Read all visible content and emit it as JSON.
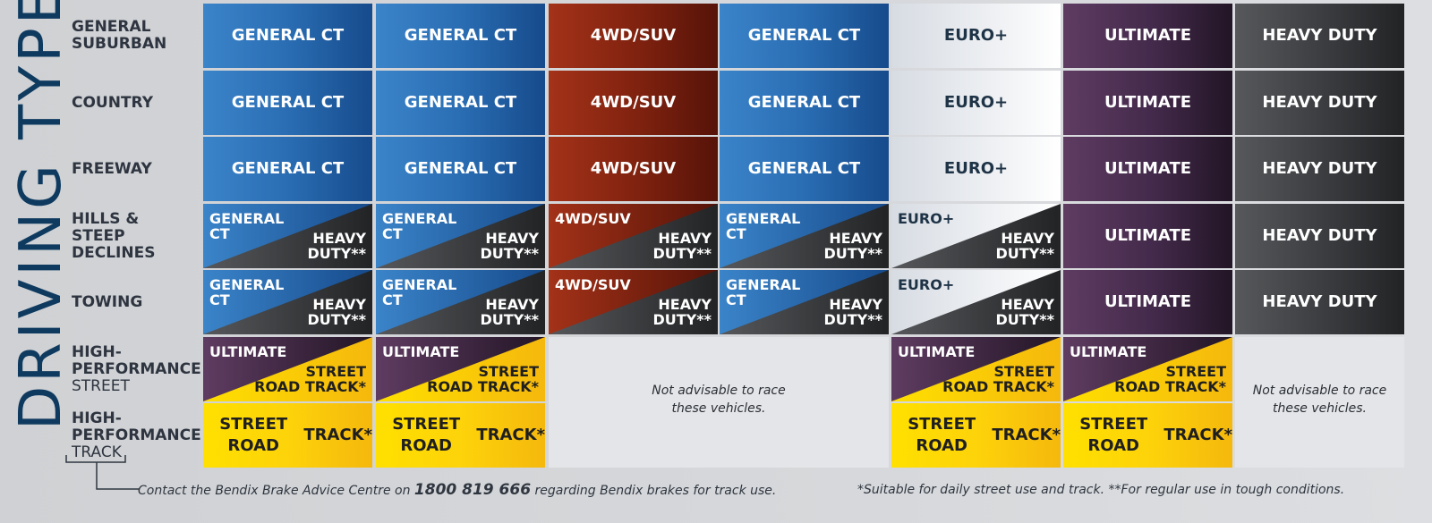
{
  "side_title": "DRIVING TYPE",
  "rows": [
    {
      "label_lines": [
        "GENERAL",
        "SUBURBAN"
      ],
      "thin_line": ""
    },
    {
      "label_lines": [
        "COUNTRY"
      ],
      "thin_line": ""
    },
    {
      "label_lines": [
        "FREEWAY"
      ],
      "thin_line": ""
    },
    {
      "label_lines": [
        "HILLS &",
        "STEEP",
        "DECLINES"
      ],
      "thin_line": ""
    },
    {
      "label_lines": [
        "TOWING"
      ],
      "thin_line": ""
    },
    {
      "label_lines": [
        "HIGH-",
        "PERFORMANCE"
      ],
      "thin_line": "STREET"
    },
    {
      "label_lines": [
        "HIGH-",
        "PERFORMANCE"
      ],
      "thin_line": "TRACK"
    }
  ],
  "palette": {
    "blue": "#2a6db3",
    "red": "#7e210f",
    "euro": "#eef0f3",
    "ultimate": "#42294a",
    "heavy": "#3c3e41",
    "yellow": "#fdd30a",
    "title": "#0f3a5f"
  },
  "grid": [
    [
      {
        "type": "solid",
        "color": "blue",
        "lines": [
          "GENERAL CT"
        ]
      },
      {
        "type": "solid",
        "color": "blue",
        "lines": [
          "GENERAL CT"
        ]
      },
      {
        "type": "solid",
        "color": "red",
        "lines": [
          "4WD/SUV"
        ]
      },
      {
        "type": "solid",
        "color": "blue",
        "lines": [
          "GENERAL CT"
        ]
      },
      {
        "type": "solid",
        "color": "euro",
        "lines": [
          "EURO+"
        ]
      },
      {
        "type": "solid",
        "color": "ultimate",
        "lines": [
          "ULTIMATE"
        ]
      },
      {
        "type": "solid",
        "color": "heavy",
        "lines": [
          "HEAVY DUTY"
        ]
      }
    ],
    [
      {
        "type": "solid",
        "color": "blue",
        "lines": [
          "GENERAL CT"
        ]
      },
      {
        "type": "solid",
        "color": "blue",
        "lines": [
          "GENERAL CT"
        ]
      },
      {
        "type": "solid",
        "color": "red",
        "lines": [
          "4WD/SUV"
        ]
      },
      {
        "type": "solid",
        "color": "blue",
        "lines": [
          "GENERAL CT"
        ]
      },
      {
        "type": "solid",
        "color": "euro",
        "lines": [
          "EURO+"
        ]
      },
      {
        "type": "solid",
        "color": "ultimate",
        "lines": [
          "ULTIMATE"
        ]
      },
      {
        "type": "solid",
        "color": "heavy",
        "lines": [
          "HEAVY DUTY"
        ]
      }
    ],
    [
      {
        "type": "solid",
        "color": "blue",
        "lines": [
          "GENERAL CT"
        ]
      },
      {
        "type": "solid",
        "color": "blue",
        "lines": [
          "GENERAL CT"
        ]
      },
      {
        "type": "solid",
        "color": "red",
        "lines": [
          "4WD/SUV"
        ]
      },
      {
        "type": "solid",
        "color": "blue",
        "lines": [
          "GENERAL CT"
        ]
      },
      {
        "type": "solid",
        "color": "euro",
        "lines": [
          "EURO+"
        ]
      },
      {
        "type": "solid",
        "color": "ultimate",
        "lines": [
          "ULTIMATE"
        ]
      },
      {
        "type": "solid",
        "color": "heavy",
        "lines": [
          "HEAVY DUTY"
        ]
      }
    ],
    [
      {
        "type": "split",
        "top": "blue",
        "bottom": "heavy",
        "top_lines": [
          "GENERAL",
          "CT"
        ],
        "bottom_lines": [
          "HEAVY",
          "DUTY**"
        ]
      },
      {
        "type": "split",
        "top": "blue",
        "bottom": "heavy",
        "top_lines": [
          "GENERAL",
          "CT"
        ],
        "bottom_lines": [
          "HEAVY",
          "DUTY**"
        ]
      },
      {
        "type": "split",
        "top": "red",
        "bottom": "heavy",
        "top_lines": [
          "4WD/SUV"
        ],
        "bottom_lines": [
          "HEAVY",
          "DUTY**"
        ]
      },
      {
        "type": "split",
        "top": "blue",
        "bottom": "heavy",
        "top_lines": [
          "GENERAL",
          "CT"
        ],
        "bottom_lines": [
          "HEAVY",
          "DUTY**"
        ]
      },
      {
        "type": "split",
        "top": "euro",
        "bottom": "heavy",
        "top_lines": [
          "EURO+"
        ],
        "bottom_lines": [
          "HEAVY",
          "DUTY**"
        ]
      },
      {
        "type": "solid",
        "color": "ultimate",
        "lines": [
          "ULTIMATE"
        ]
      },
      {
        "type": "solid",
        "color": "heavy",
        "lines": [
          "HEAVY DUTY"
        ]
      }
    ],
    [
      {
        "type": "split",
        "top": "blue",
        "bottom": "heavy",
        "top_lines": [
          "GENERAL",
          "CT"
        ],
        "bottom_lines": [
          "HEAVY",
          "DUTY**"
        ]
      },
      {
        "type": "split",
        "top": "blue",
        "bottom": "heavy",
        "top_lines": [
          "GENERAL",
          "CT"
        ],
        "bottom_lines": [
          "HEAVY",
          "DUTY**"
        ]
      },
      {
        "type": "split",
        "top": "red",
        "bottom": "heavy",
        "top_lines": [
          "4WD/SUV"
        ],
        "bottom_lines": [
          "HEAVY",
          "DUTY**"
        ]
      },
      {
        "type": "split",
        "top": "blue",
        "bottom": "heavy",
        "top_lines": [
          "GENERAL",
          "CT"
        ],
        "bottom_lines": [
          "HEAVY",
          "DUTY**"
        ]
      },
      {
        "type": "split",
        "top": "euro",
        "bottom": "heavy",
        "top_lines": [
          "EURO+"
        ],
        "bottom_lines": [
          "HEAVY",
          "DUTY**"
        ]
      },
      {
        "type": "solid",
        "color": "ultimate",
        "lines": [
          "ULTIMATE"
        ]
      },
      {
        "type": "solid",
        "color": "heavy",
        "lines": [
          "HEAVY DUTY"
        ]
      }
    ],
    [
      {
        "type": "split",
        "top": "ultimate",
        "bottom": "yellow",
        "top_lines": [
          "ULTIMATE"
        ],
        "bottom_lines": [
          "STREET",
          "ROAD TRACK*"
        ]
      },
      {
        "type": "split",
        "top": "ultimate",
        "bottom": "yellow",
        "top_lines": [
          "ULTIMATE"
        ],
        "bottom_lines": [
          "STREET",
          "ROAD TRACK*"
        ]
      },
      {
        "type": "empty"
      },
      {
        "type": "empty"
      },
      {
        "type": "split",
        "top": "ultimate",
        "bottom": "yellow",
        "top_lines": [
          "ULTIMATE"
        ],
        "bottom_lines": [
          "STREET",
          "ROAD TRACK*"
        ]
      },
      {
        "type": "split",
        "top": "ultimate",
        "bottom": "yellow",
        "top_lines": [
          "ULTIMATE"
        ],
        "bottom_lines": [
          "STREET",
          "ROAD TRACK*"
        ]
      },
      {
        "type": "empty"
      }
    ],
    [
      {
        "type": "solid",
        "color": "yellow",
        "lines": [
          "STREET ROAD",
          "TRACK*"
        ]
      },
      {
        "type": "solid",
        "color": "yellow",
        "lines": [
          "STREET ROAD",
          "TRACK*"
        ]
      },
      {
        "type": "empty"
      },
      {
        "type": "empty"
      },
      {
        "type": "solid",
        "color": "yellow",
        "lines": [
          "STREET ROAD",
          "TRACK*"
        ]
      },
      {
        "type": "solid",
        "color": "yellow",
        "lines": [
          "STREET ROAD",
          "TRACK*"
        ]
      },
      {
        "type": "empty"
      }
    ]
  ],
  "not_advisable": {
    "middle": [
      "Not advisable to race",
      "these vehicles."
    ],
    "right": [
      "Not advisable to race",
      "these vehicles."
    ]
  },
  "footer": {
    "contact_before": "Contact the Bendix Brake Advice Centre on ",
    "phone": "1800 819 666",
    "contact_after": " regarding Bendix brakes for track use.",
    "note": "*Suitable for daily street use and track. **For regular use in tough conditions."
  }
}
